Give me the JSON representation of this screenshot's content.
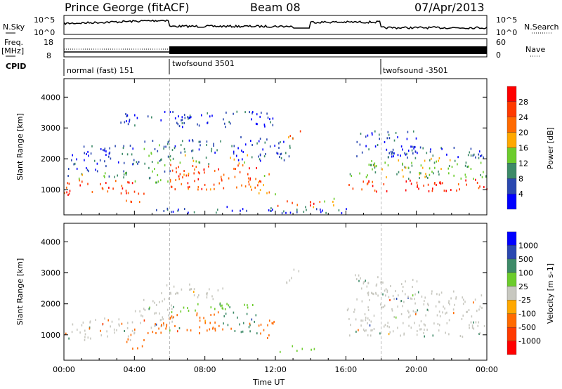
{
  "header": {
    "station": "Prince George (fitACF)",
    "beam": "Beam 08",
    "date": "07/Apr/2013"
  },
  "nsky": {
    "label": "N.Sky",
    "ticks": [
      "10^5",
      "10^0"
    ],
    "right_label": "N.Search",
    "right_ticks": [
      "10^5",
      "10^0"
    ]
  },
  "freq": {
    "label_top": "Freq.",
    "label_bottom": "[MHz]",
    "ticks": [
      "18",
      "8"
    ],
    "right_label": "Nave",
    "right_ticks": [
      "60",
      "0"
    ]
  },
  "cpid": {
    "label": "CPID",
    "segments": [
      {
        "name": "normal (fast) 151",
        "start": 0
      },
      {
        "name": "twofsound 3501",
        "start": 6
      },
      {
        "name": "twofsound -3501",
        "start": 18
      }
    ]
  },
  "chart_data": [
    {
      "type": "heatmap",
      "title": "Power",
      "ylabel": "Slant Range [km]",
      "xlabel": "Time UT",
      "xlim": [
        0,
        24
      ],
      "ylim": [
        180,
        4600
      ],
      "yticks": [
        "1000",
        "2000",
        "3000",
        "4000"
      ],
      "yvals": [
        1000,
        2000,
        3000,
        4000
      ],
      "xticks": [
        "00:00",
        "04:00",
        "08:00",
        "12:00",
        "16:00",
        "20:00",
        "00:00"
      ],
      "colorbar": {
        "label": "Power [dB]",
        "ticks": [
          "4",
          "8",
          "12",
          "16",
          "20",
          "24",
          "28"
        ],
        "colors": [
          "#0000ff",
          "#2a48b0",
          "#3d8a68",
          "#6ccc2c",
          "#ffa800",
          "#ff6a00",
          "#ff3a00",
          "#ff0000"
        ]
      },
      "regions": [
        [
          0,
          4,
          800,
          1300,
          26
        ],
        [
          0,
          4,
          1300,
          1550,
          12
        ],
        [
          0.2,
          4,
          1550,
          2400,
          5
        ],
        [
          3.5,
          4.6,
          500,
          1000,
          22
        ],
        [
          4,
          6.2,
          1200,
          2200,
          11
        ],
        [
          4.5,
          6,
          2200,
          2600,
          9
        ],
        [
          6,
          11,
          950,
          1800,
          24
        ],
        [
          6,
          11,
          1800,
          2100,
          14
        ],
        [
          5.5,
          9,
          2100,
          2600,
          7
        ],
        [
          9.5,
          13,
          1900,
          2700,
          5
        ],
        [
          12,
          14.2,
          400,
          620,
          26
        ],
        [
          12.6,
          13.4,
          2600,
          3000,
          22
        ],
        [
          11,
          12,
          800,
          1500,
          20
        ],
        [
          14,
          15.5,
          400,
          700,
          18
        ],
        [
          16,
          24,
          900,
          1300,
          27
        ],
        [
          16,
          24,
          1300,
          1500,
          13
        ],
        [
          17,
          24,
          1500,
          2000,
          13
        ],
        [
          16.5,
          20,
          2000,
          2900,
          5
        ],
        [
          18,
          24,
          2000,
          2400,
          6
        ],
        [
          3,
          12,
          3000,
          3500,
          4
        ],
        [
          5,
          16,
          200,
          420,
          6
        ]
      ]
    },
    {
      "type": "heatmap",
      "title": "Velocity",
      "ylabel": "Slant Range [km]",
      "xlabel": "Time UT",
      "xlim": [
        0,
        24
      ],
      "ylim": [
        180,
        4600
      ],
      "yticks": [
        "1000",
        "2000",
        "3000",
        "4000"
      ],
      "yvals": [
        1000,
        2000,
        3000,
        4000
      ],
      "xticks": [
        "00:00",
        "04:00",
        "08:00",
        "12:00",
        "16:00",
        "20:00",
        "00:00"
      ],
      "colorbar": {
        "label": "Velocity [m s-1]",
        "unit_main": "Velocity [m s",
        "unit_exp": "-1",
        "unit_close": "]",
        "ticks": [
          "1000",
          "500",
          "100",
          "25",
          "-25",
          "-100",
          "-500",
          "-1000"
        ],
        "colors": [
          "#0000ff",
          "#2a48b0",
          "#3d8a68",
          "#6ccc2c",
          "#c8c8c0",
          "#ffa800",
          "#ff6a00",
          "#ff3a00",
          "#ff0000"
        ]
      },
      "regions": [
        [
          0,
          4,
          800,
          1300,
          0
        ],
        [
          0,
          4,
          1300,
          1550,
          0
        ],
        [
          3.5,
          4.6,
          500,
          1000,
          -300
        ],
        [
          4,
          6.2,
          1200,
          2200,
          0
        ],
        [
          4.5,
          6,
          1000,
          1500,
          -300
        ],
        [
          6,
          9,
          1000,
          1700,
          -300
        ],
        [
          9,
          11,
          1000,
          1700,
          100
        ],
        [
          6,
          11,
          1700,
          2000,
          50
        ],
        [
          5.5,
          9,
          2100,
          2600,
          0
        ],
        [
          12,
          14.2,
          400,
          620,
          60
        ],
        [
          12.6,
          13.4,
          2600,
          3100,
          0
        ],
        [
          11,
          12,
          800,
          1500,
          -200
        ],
        [
          16,
          24,
          900,
          1300,
          0
        ],
        [
          16,
          24,
          1300,
          2000,
          0
        ],
        [
          16.5,
          20,
          2000,
          2900,
          0
        ],
        [
          18,
          24,
          2000,
          2400,
          0
        ]
      ]
    }
  ],
  "axis": {
    "xlabel": "Time UT"
  }
}
